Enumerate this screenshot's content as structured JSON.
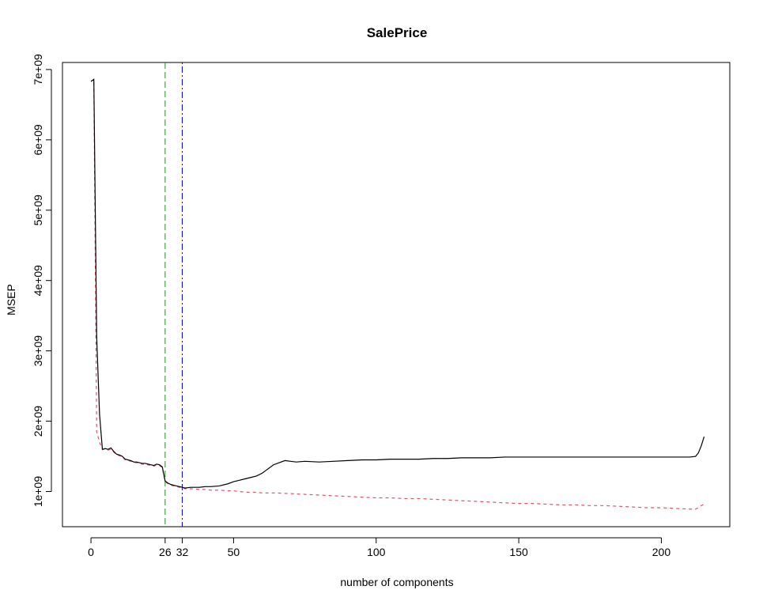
{
  "chart_data": {
    "type": "line",
    "title": "SalePrice",
    "xlabel": "number of components",
    "ylabel": "MSEP",
    "xlim": [
      -10,
      224
    ],
    "ylim": [
      500000000,
      7100000000
    ],
    "x_ticks": [
      0,
      26,
      32,
      50,
      100,
      150,
      200
    ],
    "y_ticks": [
      1000000000,
      2000000000,
      3000000000,
      4000000000,
      5000000000,
      6000000000,
      7000000000
    ],
    "y_tick_labels": [
      "1e+09",
      "2e+09",
      "3e+09",
      "4e+09",
      "5e+09",
      "6e+09",
      "7e+09"
    ],
    "grid": false,
    "legend": "none",
    "vlines": [
      {
        "x": 26,
        "color": "#228B22",
        "style": "dashed"
      },
      {
        "x": 32,
        "color": "#0000FF",
        "style": "dotdash"
      }
    ],
    "series": [
      {
        "color": "#000000",
        "style": "solid",
        "points": [
          [
            0,
            6830000000
          ],
          [
            1,
            6860000000
          ],
          [
            2,
            3200000000
          ],
          [
            3,
            2100000000
          ],
          [
            4,
            1600000000
          ],
          [
            5,
            1610000000
          ],
          [
            6,
            1600000000
          ],
          [
            7,
            1620000000
          ],
          [
            8,
            1570000000
          ],
          [
            9,
            1530000000
          ],
          [
            10,
            1520000000
          ],
          [
            11,
            1500000000
          ],
          [
            12,
            1460000000
          ],
          [
            13,
            1450000000
          ],
          [
            14,
            1440000000
          ],
          [
            15,
            1420000000
          ],
          [
            16,
            1420000000
          ],
          [
            17,
            1410000000
          ],
          [
            18,
            1400000000
          ],
          [
            19,
            1400000000
          ],
          [
            20,
            1390000000
          ],
          [
            21,
            1380000000
          ],
          [
            22,
            1370000000
          ],
          [
            23,
            1390000000
          ],
          [
            24,
            1380000000
          ],
          [
            25,
            1350000000
          ],
          [
            26,
            1150000000
          ],
          [
            27,
            1120000000
          ],
          [
            28,
            1100000000
          ],
          [
            29,
            1090000000
          ],
          [
            30,
            1080000000
          ],
          [
            31,
            1070000000
          ],
          [
            32,
            1060000000
          ],
          [
            33,
            1050000000
          ],
          [
            35,
            1060000000
          ],
          [
            38,
            1060000000
          ],
          [
            40,
            1070000000
          ],
          [
            42,
            1070000000
          ],
          [
            45,
            1080000000
          ],
          [
            48,
            1110000000
          ],
          [
            50,
            1140000000
          ],
          [
            52,
            1160000000
          ],
          [
            54,
            1180000000
          ],
          [
            56,
            1200000000
          ],
          [
            58,
            1220000000
          ],
          [
            60,
            1260000000
          ],
          [
            62,
            1320000000
          ],
          [
            64,
            1380000000
          ],
          [
            66,
            1410000000
          ],
          [
            68,
            1440000000
          ],
          [
            70,
            1430000000
          ],
          [
            72,
            1420000000
          ],
          [
            75,
            1430000000
          ],
          [
            80,
            1420000000
          ],
          [
            85,
            1430000000
          ],
          [
            90,
            1440000000
          ],
          [
            95,
            1450000000
          ],
          [
            100,
            1450000000
          ],
          [
            105,
            1460000000
          ],
          [
            110,
            1460000000
          ],
          [
            115,
            1460000000
          ],
          [
            120,
            1470000000
          ],
          [
            125,
            1470000000
          ],
          [
            130,
            1480000000
          ],
          [
            135,
            1480000000
          ],
          [
            140,
            1480000000
          ],
          [
            145,
            1490000000
          ],
          [
            150,
            1490000000
          ],
          [
            155,
            1490000000
          ],
          [
            160,
            1490000000
          ],
          [
            165,
            1490000000
          ],
          [
            170,
            1490000000
          ],
          [
            175,
            1490000000
          ],
          [
            180,
            1490000000
          ],
          [
            185,
            1490000000
          ],
          [
            190,
            1490000000
          ],
          [
            195,
            1490000000
          ],
          [
            200,
            1490000000
          ],
          [
            205,
            1490000000
          ],
          [
            210,
            1490000000
          ],
          [
            212,
            1500000000
          ],
          [
            213,
            1550000000
          ],
          [
            214,
            1650000000
          ],
          [
            215,
            1780000000
          ]
        ]
      },
      {
        "color": "#DF536B",
        "style": "dashed",
        "points": [
          [
            0,
            6830000000
          ],
          [
            1,
            6860000000
          ],
          [
            2,
            1850000000
          ],
          [
            3,
            1700000000
          ],
          [
            4,
            1600000000
          ],
          [
            5,
            1600000000
          ],
          [
            6,
            1590000000
          ],
          [
            7,
            1600000000
          ],
          [
            8,
            1560000000
          ],
          [
            9,
            1520000000
          ],
          [
            10,
            1510000000
          ],
          [
            11,
            1490000000
          ],
          [
            12,
            1450000000
          ],
          [
            13,
            1440000000
          ],
          [
            14,
            1430000000
          ],
          [
            15,
            1410000000
          ],
          [
            16,
            1410000000
          ],
          [
            17,
            1400000000
          ],
          [
            18,
            1390000000
          ],
          [
            19,
            1390000000
          ],
          [
            20,
            1380000000
          ],
          [
            21,
            1370000000
          ],
          [
            22,
            1360000000
          ],
          [
            23,
            1380000000
          ],
          [
            24,
            1370000000
          ],
          [
            25,
            1340000000
          ],
          [
            26,
            1140000000
          ],
          [
            27,
            1110000000
          ],
          [
            28,
            1090000000
          ],
          [
            29,
            1080000000
          ],
          [
            30,
            1070000000
          ],
          [
            31,
            1060000000
          ],
          [
            32,
            1050000000
          ],
          [
            33,
            1040000000
          ],
          [
            35,
            1040000000
          ],
          [
            38,
            1030000000
          ],
          [
            40,
            1030000000
          ],
          [
            42,
            1020000000
          ],
          [
            45,
            1020000000
          ],
          [
            48,
            1010000000
          ],
          [
            50,
            1010000000
          ],
          [
            52,
            1000000000
          ],
          [
            55,
            990000000
          ],
          [
            58,
            990000000
          ],
          [
            60,
            980000000
          ],
          [
            65,
            980000000
          ],
          [
            70,
            970000000
          ],
          [
            75,
            960000000
          ],
          [
            80,
            950000000
          ],
          [
            85,
            940000000
          ],
          [
            90,
            930000000
          ],
          [
            95,
            920000000
          ],
          [
            100,
            910000000
          ],
          [
            105,
            910000000
          ],
          [
            110,
            900000000
          ],
          [
            115,
            900000000
          ],
          [
            120,
            890000000
          ],
          [
            125,
            880000000
          ],
          [
            130,
            870000000
          ],
          [
            135,
            860000000
          ],
          [
            140,
            850000000
          ],
          [
            145,
            840000000
          ],
          [
            150,
            830000000
          ],
          [
            155,
            830000000
          ],
          [
            160,
            820000000
          ],
          [
            165,
            810000000
          ],
          [
            170,
            810000000
          ],
          [
            175,
            800000000
          ],
          [
            180,
            800000000
          ],
          [
            185,
            790000000
          ],
          [
            190,
            780000000
          ],
          [
            195,
            770000000
          ],
          [
            200,
            770000000
          ],
          [
            205,
            760000000
          ],
          [
            210,
            750000000
          ],
          [
            212,
            750000000
          ],
          [
            213,
            770000000
          ],
          [
            214,
            800000000
          ],
          [
            215,
            820000000
          ]
        ]
      }
    ]
  }
}
